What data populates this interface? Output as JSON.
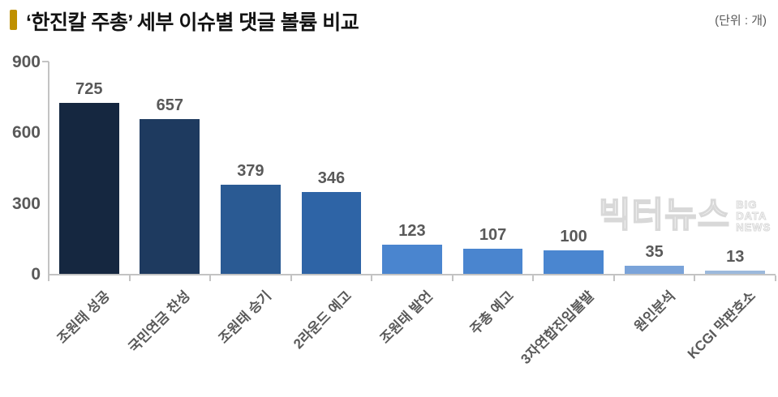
{
  "header": {
    "title": "‘한진칼 주총’ 세부 이슈별 댓글 볼륨 비교",
    "unit_label": "(단위 : 개)",
    "accent_color": "#BF9000"
  },
  "watermark": {
    "brand": "빅터뉴스",
    "tagline_lines": [
      "BIG",
      "DATA",
      "NEWS"
    ]
  },
  "chart_data": {
    "type": "bar",
    "title": "‘한진칼 주총’ 세부 이슈별 댓글 볼륨 비교",
    "unit": "개",
    "categories": [
      "조원태 성공",
      "국민연금 찬성",
      "조원태 승기",
      "2라운드 예고",
      "조원태 발언",
      "주총 예고",
      "3자연합진입불발",
      "원인분석",
      "KCGI 막판호소"
    ],
    "values": [
      725,
      657,
      379,
      346,
      123,
      107,
      100,
      35,
      13
    ],
    "bar_colors": [
      "#152740",
      "#1E3A5F",
      "#2A5A93",
      "#2E64A6",
      "#4A85CF",
      "#4A85CF",
      "#4A86D0",
      "#7AA3D9",
      "#9CB9DC"
    ],
    "xlabel": "",
    "ylabel": "",
    "ylim": [
      0,
      900
    ],
    "yticks": [
      0,
      300,
      600,
      900
    ],
    "grid": false,
    "value_labels": true,
    "legend": "none",
    "label_color": "#595959",
    "axis_color": "#C3C3C3"
  }
}
